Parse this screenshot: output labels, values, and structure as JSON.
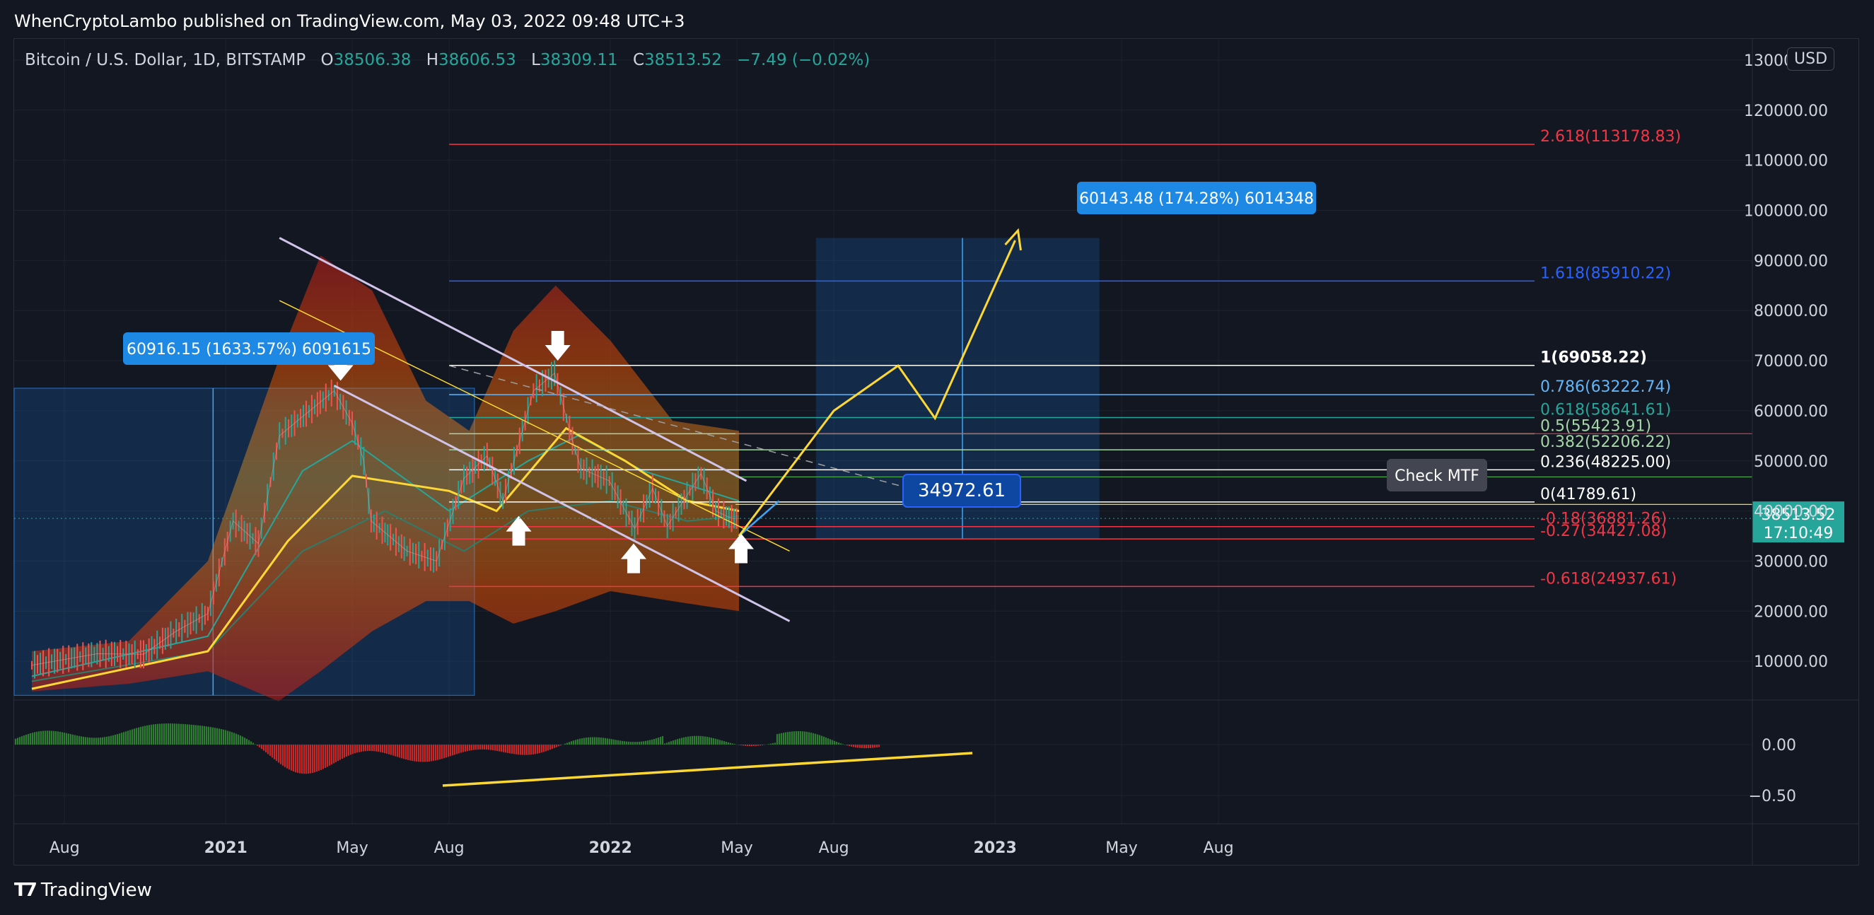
{
  "header": {
    "published": "WhenCryptoLambo published on TradingView.com, May 03, 2022 09:48 UTC+3"
  },
  "legend": {
    "symbol": "Bitcoin / U.S. Dollar, 1D, BITSTAMP",
    "open_label": "O",
    "open": "38506.38",
    "high_label": "H",
    "high": "38606.53",
    "low_label": "L",
    "low": "38309.11",
    "close_label": "C",
    "close": "38513.52",
    "change": "−7.49 (−0.02%)"
  },
  "currency_button": "USD",
  "footer": {
    "brand": "TradingView"
  },
  "colors": {
    "background": "#131722",
    "up": "#26a69a",
    "down": "#ef5350",
    "fib_red": "#f23645",
    "fib_blue": "#2962ff",
    "fib_white": "#ffffff",
    "fib_lightblue": "#64b5f6",
    "fib_green": "#26a69a",
    "fib_lime": "#a5d6a7",
    "yellow": "#ffeb3b",
    "box_blue": "#1976d2"
  },
  "chart_data": [
    {
      "type": "line",
      "id": "price",
      "x_axis": {
        "tick_labels": [
          "Aug",
          "2021",
          "May",
          "Aug",
          "2022",
          "May",
          "Aug",
          "2023",
          "May",
          "Aug"
        ]
      },
      "y_axis": {
        "scale": "linear",
        "ylim": [
          0,
          130000
        ],
        "tick_labels": [
          "10000.00",
          "20000.00",
          "30000.00",
          "40000.00",
          "50000.00",
          "60000.00",
          "70000.00",
          "80000.00",
          "90000.00",
          "100000.00",
          "110000.00",
          "120000.00",
          "130000.00"
        ],
        "tick_values": [
          10000,
          20000,
          30000,
          40000,
          50000,
          60000,
          70000,
          80000,
          90000,
          100000,
          110000,
          120000,
          130000
        ]
      },
      "series": [
        {
          "x": [
            "2020-07-01",
            "2020-09-01",
            "2020-10-15",
            "2020-11-15",
            "2020-12-15",
            "2021-01-08",
            "2021-02-01",
            "2021-02-21",
            "2021-03-13",
            "2021-04-14",
            "2021-05-01",
            "2021-05-12",
            "2021-05-19",
            "2021-06-22",
            "2021-07-20",
            "2021-08-15",
            "2021-09-06",
            "2021-09-21",
            "2021-10-20",
            "2021-11-09",
            "2021-11-26",
            "2021-12-04",
            "2021-12-31",
            "2022-01-24",
            "2022-02-10",
            "2022-02-24",
            "2022-03-28",
            "2022-04-11",
            "2022-04-26",
            "2022-05-03"
          ],
          "values": [
            9200,
            11500,
            11400,
            16000,
            19500,
            38000,
            33500,
            55000,
            58500,
            64000,
            57500,
            50000,
            38000,
            32000,
            30000,
            46500,
            51000,
            42000,
            64000,
            67500,
            54000,
            48500,
            46000,
            36500,
            44500,
            37000,
            47500,
            40000,
            38500,
            38513
          ]
        }
      ],
      "fibonacci_levels": [
        {
          "label": "2.618(113178.83)",
          "value": 113178.83,
          "color": "fib_red"
        },
        {
          "label": "1.618(85910.22)",
          "value": 85910.22,
          "color": "fib_blue"
        },
        {
          "label": "1(69058.22)",
          "value": 69058.22,
          "color": "fib_white"
        },
        {
          "label": "0.786(63222.74)",
          "value": 63222.74,
          "color": "fib_lightblue"
        },
        {
          "label": "0.618(58641.61)",
          "value": 58641.61,
          "color": "fib_green"
        },
        {
          "label": "0.5(55423.91)",
          "value": 55423.91,
          "color": "fib_lime"
        },
        {
          "label": "0.382(52206.22)",
          "value": 52206.22,
          "color": "fib_lime"
        },
        {
          "label": "0.236(48225.00)",
          "value": 48225.0,
          "color": "fib_white"
        },
        {
          "label": "0(41789.61)",
          "value": 41789.61,
          "color": "fib_white"
        },
        {
          "label": "-0.18(36881.26)",
          "value": 36881.26,
          "color": "fib_red"
        },
        {
          "label": "-0.27(34427.08)",
          "value": 34427.08,
          "color": "fib_red"
        },
        {
          "label": "-0.618(24937.61)",
          "value": 24937.61,
          "color": "fib_red"
        }
      ],
      "annotations": {
        "measure_box_1": "60916.15 (1633.57%) 6091615",
        "measure_box_2": "60143.48 (174.28%) 6014348",
        "price_tag": "34972.61",
        "check_mtf": "Check MTF",
        "last_price": "38513.52",
        "countdown": "17:10:49"
      },
      "projection_path": {
        "x": [
          "2022-05-03",
          "2022-08-01",
          "2022-10-01",
          "2022-11-05",
          "2023-01-20"
        ],
        "values": [
          35000,
          60000,
          69000,
          58500,
          94000
        ]
      }
    },
    {
      "type": "bar",
      "id": "oscillator",
      "y_axis": {
        "tick_labels": [
          "0.00",
          "−0.50"
        ],
        "tick_values": [
          0,
          -0.5
        ]
      }
    }
  ]
}
